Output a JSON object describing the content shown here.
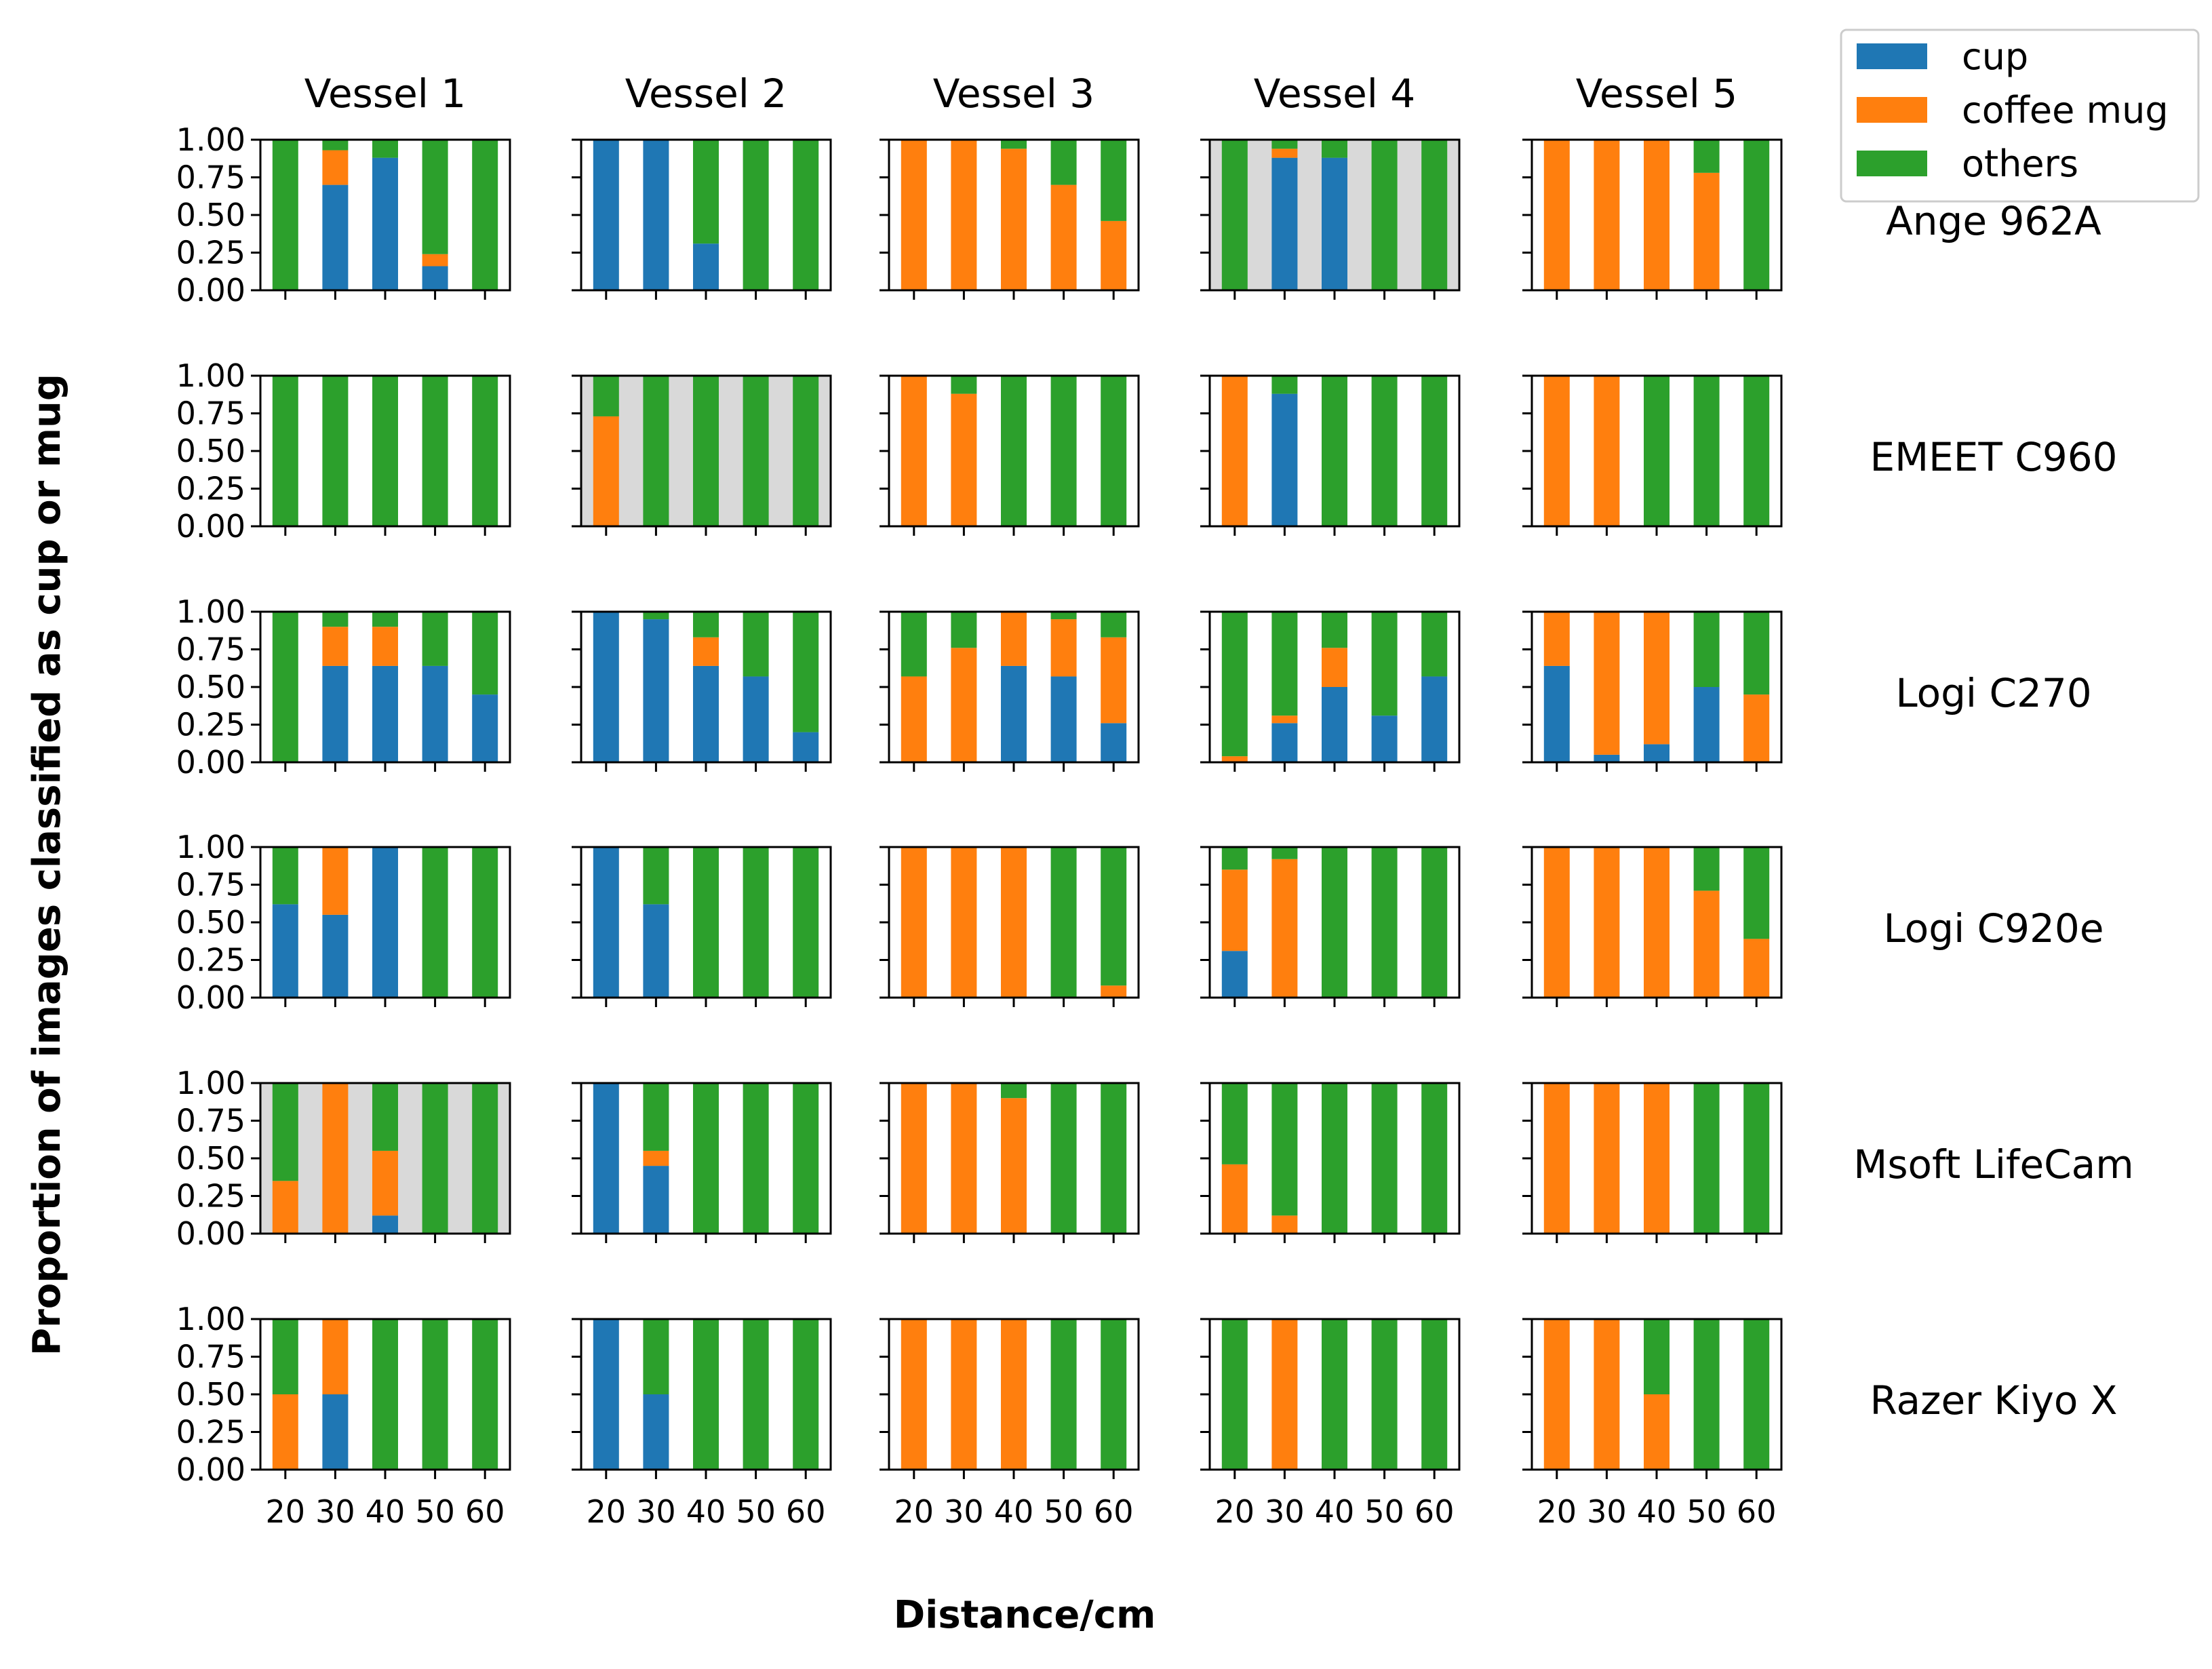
{
  "chart_data": {
    "type": "bar",
    "stacked": true,
    "xlabel": "Distance/cm",
    "ylabel": "Proportion of images classified as cup or mug",
    "columns": [
      "Vessel 1",
      "Vessel 2",
      "Vessel 3",
      "Vessel 4",
      "Vessel 5"
    ],
    "rows": [
      "Ange 962A",
      "EMEET C960",
      "Logi C270",
      "Logi C920e",
      "Msoft LifeCam",
      "Razer Kiyo X"
    ],
    "categories": [
      "20",
      "30",
      "40",
      "50",
      "60"
    ],
    "ylim": [
      0,
      1
    ],
    "yticks": [
      "0.00",
      "0.25",
      "0.50",
      "0.75",
      "1.00"
    ],
    "legend": {
      "placement": "top-right",
      "entries": [
        {
          "name": "cup",
          "color": "#1f77b4"
        },
        {
          "name": "coffee mug",
          "color": "#ff7f0e"
        },
        {
          "name": "others",
          "color": "#2ca02c"
        }
      ]
    },
    "highlight_color": "#d9d9d9",
    "highlighted_panels": [
      {
        "row": "Ange 962A",
        "column": "Vessel 4"
      },
      {
        "row": "EMEET C960",
        "column": "Vessel 2"
      },
      {
        "row": "Msoft LifeCam",
        "column": "Vessel 1"
      }
    ],
    "panels": [
      [
        {
          "cup": [
            0,
            0.7,
            0.88,
            0.16,
            0
          ],
          "coffee_mug": [
            0,
            0.23,
            0,
            0.08,
            0
          ]
        },
        {
          "cup": [
            1.0,
            1.0,
            0.31,
            0,
            0
          ],
          "coffee_mug": [
            0,
            0,
            0,
            0,
            0
          ]
        },
        {
          "cup": [
            0,
            0,
            0,
            0,
            0
          ],
          "coffee_mug": [
            1.0,
            1.0,
            0.94,
            0.7,
            0.46
          ]
        },
        {
          "cup": [
            0,
            0.88,
            0.88,
            0,
            0
          ],
          "coffee_mug": [
            0,
            0.06,
            0,
            0,
            0
          ]
        },
        {
          "cup": [
            0,
            0,
            0,
            0,
            0
          ],
          "coffee_mug": [
            1.0,
            1.0,
            1.0,
            0.78,
            0
          ]
        }
      ],
      [
        {
          "cup": [
            0,
            0,
            0,
            0,
            0
          ],
          "coffee_mug": [
            0,
            0,
            0,
            0,
            0
          ]
        },
        {
          "cup": [
            0,
            0,
            0,
            0,
            0
          ],
          "coffee_mug": [
            0.73,
            0,
            0,
            0,
            0
          ]
        },
        {
          "cup": [
            0,
            0,
            0,
            0,
            0
          ],
          "coffee_mug": [
            1.0,
            0.88,
            0,
            0,
            0
          ]
        },
        {
          "cup": [
            0,
            0.88,
            0,
            0,
            0
          ],
          "coffee_mug": [
            1.0,
            0,
            0,
            0,
            0
          ]
        },
        {
          "cup": [
            0,
            0,
            0,
            0,
            0
          ],
          "coffee_mug": [
            1.0,
            1.0,
            0,
            0,
            0
          ]
        }
      ],
      [
        {
          "cup": [
            0,
            0.64,
            0.64,
            0.64,
            0.45
          ],
          "coffee_mug": [
            0,
            0.26,
            0.26,
            0,
            0
          ]
        },
        {
          "cup": [
            1.0,
            0.95,
            0.64,
            0.57,
            0.2
          ],
          "coffee_mug": [
            0,
            0,
            0.19,
            0,
            0
          ]
        },
        {
          "cup": [
            0,
            0,
            0.64,
            0.57,
            0.26
          ],
          "coffee_mug": [
            0.57,
            0.76,
            0.36,
            0.38,
            0.57
          ]
        },
        {
          "cup": [
            0,
            0.26,
            0.5,
            0.31,
            0.57
          ],
          "coffee_mug": [
            0.04,
            0.05,
            0.26,
            0,
            0
          ]
        },
        {
          "cup": [
            0.64,
            0.05,
            0.12,
            0.5,
            0
          ],
          "coffee_mug": [
            0.36,
            0.95,
            0.88,
            0,
            0.45
          ]
        }
      ],
      [
        {
          "cup": [
            0.62,
            0.55,
            1.0,
            0,
            0
          ],
          "coffee_mug": [
            0,
            0.45,
            0,
            0,
            0
          ]
        },
        {
          "cup": [
            1.0,
            0.62,
            0,
            0,
            0
          ],
          "coffee_mug": [
            0,
            0,
            0,
            0,
            0
          ]
        },
        {
          "cup": [
            0,
            0,
            0,
            0,
            0
          ],
          "coffee_mug": [
            1.0,
            1.0,
            1.0,
            0,
            0.08
          ]
        },
        {
          "cup": [
            0.31,
            0,
            0,
            0,
            0
          ],
          "coffee_mug": [
            0.54,
            0.92,
            0,
            0,
            0
          ]
        },
        {
          "cup": [
            0,
            0,
            0,
            0,
            0
          ],
          "coffee_mug": [
            1.0,
            1.0,
            1.0,
            0.71,
            0.39
          ]
        }
      ],
      [
        {
          "cup": [
            0,
            0,
            0.12,
            0,
            0
          ],
          "coffee_mug": [
            0.35,
            1.0,
            0.43,
            0,
            0
          ]
        },
        {
          "cup": [
            1.0,
            0.45,
            0,
            0,
            0
          ],
          "coffee_mug": [
            0,
            0.1,
            0,
            0,
            0
          ]
        },
        {
          "cup": [
            0,
            0,
            0,
            0,
            0
          ],
          "coffee_mug": [
            1.0,
            1.0,
            0.9,
            0,
            0
          ]
        },
        {
          "cup": [
            0,
            0,
            0,
            0,
            0
          ],
          "coffee_mug": [
            0.46,
            0.12,
            0,
            0,
            0
          ]
        },
        {
          "cup": [
            0,
            0,
            0,
            0,
            0
          ],
          "coffee_mug": [
            1.0,
            1.0,
            1.0,
            0,
            0
          ]
        }
      ],
      [
        {
          "cup": [
            0,
            0.5,
            0,
            0,
            0
          ],
          "coffee_mug": [
            0.5,
            0.5,
            0,
            0,
            0
          ]
        },
        {
          "cup": [
            1.0,
            0.5,
            0,
            0,
            0
          ],
          "coffee_mug": [
            0,
            0,
            0,
            0,
            0
          ]
        },
        {
          "cup": [
            0,
            0,
            0,
            0,
            0
          ],
          "coffee_mug": [
            1.0,
            1.0,
            1.0,
            0,
            0
          ]
        },
        {
          "cup": [
            0,
            0,
            0,
            0,
            0
          ],
          "coffee_mug": [
            0,
            1.0,
            0,
            0,
            0
          ]
        },
        {
          "cup": [
            0,
            0,
            0,
            0,
            0
          ],
          "coffee_mug": [
            1.0,
            1.0,
            0.5,
            0,
            0
          ]
        }
      ]
    ]
  }
}
